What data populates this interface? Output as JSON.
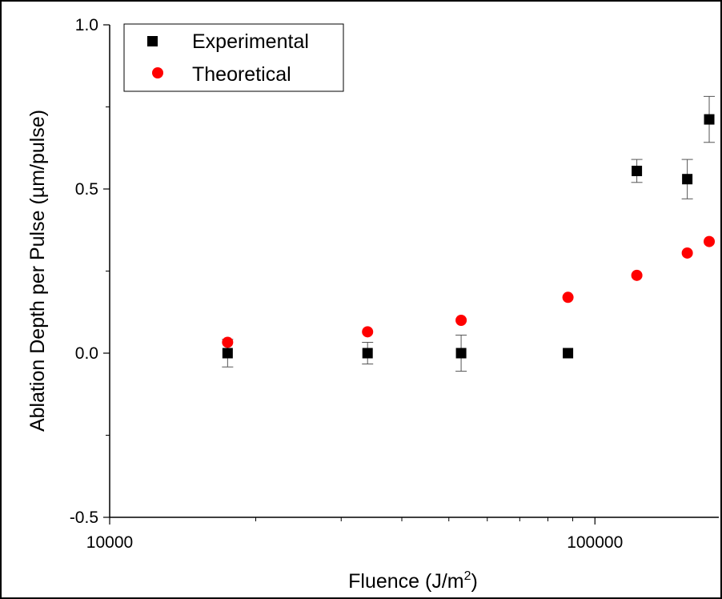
{
  "chart_data": {
    "type": "scatter",
    "xlabel": "Fluence (J/m",
    "xlabel_sup": "2",
    "xlabel_end": ")",
    "ylabel": "Ablation Depth per Pulse (µm/pulse)",
    "x_scale": "log",
    "xlim": [
      10000,
      180000
    ],
    "ylim": [
      -0.5,
      1.0
    ],
    "x_tick_labels": [
      "10000",
      "100000"
    ],
    "y_tick_labels": [
      "1.0",
      "0.5",
      "0.0",
      "-0.5"
    ],
    "grid": false,
    "legend_position": "top-left",
    "series": [
      {
        "name": "Experimental",
        "marker": "square",
        "color": "#000000",
        "x": [
          17500,
          34000,
          53000,
          88000,
          122000,
          155000,
          172000
        ],
        "y": [
          0.0,
          0.0,
          0.0,
          0.0,
          0.555,
          0.53,
          0.712
        ],
        "yerr": [
          0.042,
          0.033,
          0.055,
          0.0,
          0.035,
          0.06,
          0.07
        ]
      },
      {
        "name": "Theoretical",
        "marker": "circle",
        "color": "#ff0000",
        "x": [
          17500,
          34000,
          53000,
          88000,
          122000,
          155000,
          172000
        ],
        "y": [
          0.033,
          0.065,
          0.1,
          0.17,
          0.237,
          0.305,
          0.34
        ]
      }
    ]
  }
}
